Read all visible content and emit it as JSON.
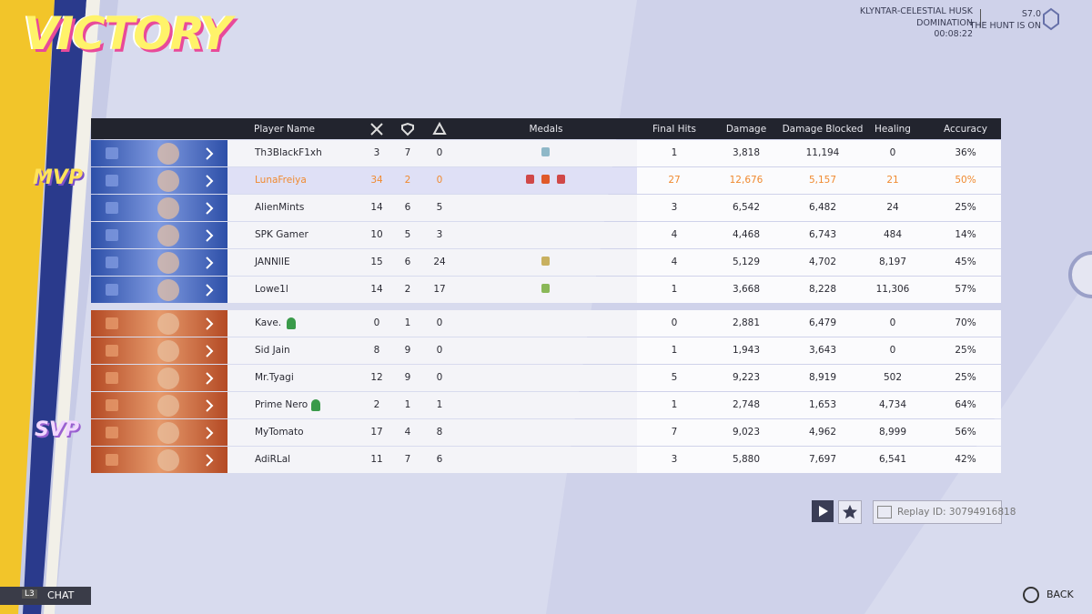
{
  "header": {
    "title": "VICTORY",
    "map": "KLYNTAR-CELESTIAL HUSK",
    "mode": "DOMINATION",
    "time": "00:08:22",
    "season": "S7.0",
    "season_name": "THE HUNT IS ON"
  },
  "table": {
    "columns": {
      "name": "Player Name",
      "medals": "Medals",
      "final_hits": "Final Hits",
      "damage": "Damage",
      "blocked": "Damage Blocked",
      "healing": "Healing",
      "accuracy": "Accuracy"
    },
    "teams": [
      {
        "rows": [
          [
            "Th3BlackF1xh",
            "3",
            "7",
            "0",
            "1",
            "3,818",
            "11,194",
            "0",
            "36%"
          ],
          [
            "LunaFreiya",
            "34",
            "2",
            "0",
            "27",
            "12,676",
            "5,157",
            "21",
            "50%"
          ],
          [
            "AlienMints",
            "14",
            "6",
            "5",
            "3",
            "6,542",
            "6,482",
            "24",
            "25%"
          ],
          [
            "SPK Gamer",
            "10",
            "5",
            "3",
            "4",
            "4,468",
            "6,743",
            "484",
            "14%"
          ],
          [
            "JANNIIE",
            "15",
            "6",
            "24",
            "4",
            "5,129",
            "4,702",
            "8,197",
            "45%"
          ],
          [
            "Lowe1l",
            "14",
            "2",
            "17",
            "1",
            "3,668",
            "8,228",
            "11,306",
            "57%"
          ]
        ]
      },
      {
        "rows": [
          [
            "Kave.",
            "0",
            "1",
            "0",
            "0",
            "2,881",
            "6,479",
            "0",
            "70%"
          ],
          [
            "Sid Jain",
            "8",
            "9",
            "0",
            "1",
            "1,943",
            "3,643",
            "0",
            "25%"
          ],
          [
            "Mr.Tyagi",
            "12",
            "9",
            "0",
            "5",
            "9,223",
            "8,919",
            "502",
            "25%"
          ],
          [
            "Prime Nero",
            "2",
            "1",
            "1",
            "1",
            "2,748",
            "1,653",
            "4,734",
            "64%"
          ],
          [
            "MyTomato",
            "17",
            "4",
            "8",
            "7",
            "9,023",
            "4,962",
            "8,999",
            "56%"
          ],
          [
            "AdiRLal",
            "11",
            "7",
            "6",
            "3",
            "5,880",
            "7,697",
            "6,541",
            "42%"
          ]
        ]
      }
    ]
  },
  "badges": {
    "mvp": "MVP",
    "svp": "SVP"
  },
  "footer": {
    "replay": "Replay ID: 30794916818",
    "chat_key": "L3",
    "chat": "CHAT",
    "back": "BACK"
  }
}
